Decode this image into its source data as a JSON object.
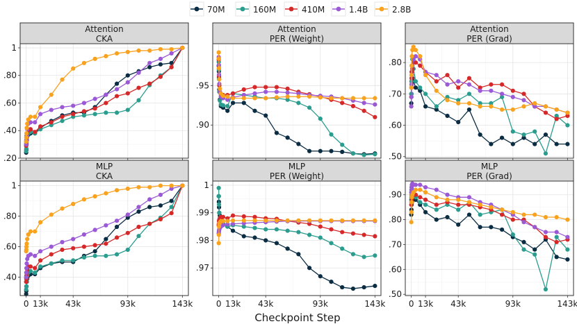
{
  "chart_data": {
    "type": "line",
    "xlabel": "Checkpoint Step",
    "x_ticks": [
      0,
      13000,
      43000,
      93000,
      143000
    ],
    "x_tick_labels": [
      "0",
      "13k",
      "43k",
      "93k",
      "143k"
    ],
    "x": [
      0,
      128,
      256,
      512,
      1000,
      2000,
      4000,
      8000,
      13000,
      23000,
      33000,
      43000,
      53000,
      63000,
      73000,
      83000,
      93000,
      103000,
      113000,
      123000,
      133000,
      143000
    ],
    "legend": {
      "position": "top",
      "entries": [
        {
          "name": "70M",
          "color": "#0b2d44"
        },
        {
          "name": "160M",
          "color": "#2a9d8f"
        },
        {
          "name": "410M",
          "color": "#d62828"
        },
        {
          "name": "1.4B",
          "color": "#9b59d6"
        },
        {
          "name": "2.8B",
          "color": "#f8a21e"
        }
      ]
    },
    "panels": [
      {
        "id": "att-cka",
        "row": 0,
        "col": 0,
        "strip": [
          "Attention",
          "CKA"
        ],
        "ylim": [
          0.2,
          1.03
        ],
        "y_ticks": [
          0.2,
          0.4,
          0.6,
          0.8,
          1.0
        ],
        "y_tick_labels": [
          ".20",
          ".40",
          ".60",
          ".80",
          "1"
        ],
        "series": [
          {
            "name": "70M",
            "values": [
              0.24,
              0.26,
              0.3,
              0.33,
              0.36,
              0.37,
              0.38,
              0.38,
              0.42,
              0.47,
              0.51,
              0.53,
              0.53,
              0.57,
              0.66,
              0.74,
              0.8,
              0.83,
              0.86,
              0.88,
              0.89,
              1.0
            ]
          },
          {
            "name": "160M",
            "values": [
              0.25,
              0.27,
              0.31,
              0.34,
              0.36,
              0.38,
              0.39,
              0.38,
              0.41,
              0.44,
              0.47,
              0.5,
              0.51,
              0.52,
              0.53,
              0.53,
              0.55,
              0.62,
              0.73,
              0.8,
              0.86,
              1.0
            ]
          },
          {
            "name": "410M",
            "values": [
              0.29,
              0.31,
              0.33,
              0.35,
              0.38,
              0.4,
              0.41,
              0.39,
              0.43,
              0.46,
              0.5,
              0.52,
              0.54,
              0.56,
              0.6,
              0.65,
              0.67,
              0.71,
              0.74,
              0.79,
              0.86,
              1.0
            ]
          },
          {
            "name": "1.4B",
            "values": [
              0.3,
              0.33,
              0.36,
              0.38,
              0.41,
              0.45,
              0.46,
              0.46,
              0.52,
              0.55,
              0.57,
              0.58,
              0.6,
              0.63,
              0.66,
              0.7,
              0.75,
              0.82,
              0.89,
              0.92,
              0.96,
              1.0
            ]
          },
          {
            "name": "2.8B",
            "values": [
              0.32,
              0.35,
              0.38,
              0.42,
              0.45,
              0.48,
              0.5,
              0.5,
              0.57,
              0.66,
              0.77,
              0.85,
              0.89,
              0.92,
              0.94,
              0.96,
              0.97,
              0.98,
              0.98,
              0.99,
              0.99,
              1.0
            ]
          }
        ]
      },
      {
        "id": "att-per-w",
        "row": 0,
        "col": 1,
        "strip": [
          "Attention",
          "PER (Weight)"
        ],
        "ylim": [
          0.858,
          1.003
        ],
        "y_ticks": [
          0.9,
          0.95
        ],
        "y_tick_labels": [
          ".90",
          ".95"
        ],
        "series": [
          {
            "name": "70M",
            "values": [
              0.975,
              0.968,
              0.96,
              0.945,
              0.932,
              0.924,
              0.922,
              0.918,
              0.928,
              0.928,
              0.918,
              0.912,
              0.89,
              0.884,
              0.876,
              0.867,
              0.867,
              0.867,
              0.866,
              0.864,
              0.863,
              0.864
            ]
          },
          {
            "name": "160M",
            "values": [
              0.98,
              0.97,
              0.958,
              0.942,
              0.931,
              0.926,
              0.925,
              0.924,
              0.94,
              0.938,
              0.936,
              0.934,
              0.934,
              0.932,
              0.928,
              0.922,
              0.908,
              0.888,
              0.875,
              0.864,
              0.862,
              0.863
            ]
          },
          {
            "name": "410M",
            "values": [
              0.983,
              0.972,
              0.962,
              0.95,
              0.942,
              0.939,
              0.938,
              0.938,
              0.94,
              0.945,
              0.948,
              0.948,
              0.948,
              0.946,
              0.942,
              0.939,
              0.936,
              0.932,
              0.928,
              0.924,
              0.918,
              0.91
            ]
          },
          {
            "name": "1.4B",
            "values": [
              0.986,
              0.976,
              0.964,
              0.952,
              0.942,
              0.936,
              0.934,
              0.932,
              0.935,
              0.938,
              0.94,
              0.942,
              0.942,
              0.941,
              0.94,
              0.938,
              0.937,
              0.936,
              0.934,
              0.931,
              0.928,
              0.926
            ]
          },
          {
            "name": "2.8B",
            "values": [
              0.992,
              0.984,
              0.972,
              0.958,
              0.946,
              0.94,
              0.937,
              0.936,
              0.934,
              0.934,
              0.934,
              0.934,
              0.935,
              0.936,
              0.936,
              0.936,
              0.935,
              0.934,
              0.934,
              0.934,
              0.934,
              0.934
            ]
          }
        ]
      },
      {
        "id": "att-per-g",
        "row": 0,
        "col": 2,
        "strip": [
          "Attention",
          "PER (Grad)"
        ],
        "ylim": [
          0.495,
          0.86
        ],
        "y_ticks": [
          0.5,
          0.6,
          0.7,
          0.8
        ],
        "y_tick_labels": [
          ".50",
          ".60",
          ".70",
          ".80"
        ],
        "series": [
          {
            "name": "70M",
            "values": [
              0.67,
              0.7,
              0.73,
              0.74,
              0.75,
              0.74,
              0.72,
              0.71,
              0.66,
              0.65,
              0.63,
              0.61,
              0.65,
              0.57,
              0.54,
              0.56,
              0.54,
              0.56,
              0.54,
              0.57,
              0.54,
              0.54
            ]
          },
          {
            "name": "160M",
            "values": [
              0.7,
              0.74,
              0.77,
              0.79,
              0.81,
              0.78,
              0.74,
              0.72,
              0.7,
              0.66,
              0.69,
              0.68,
              0.7,
              0.67,
              0.67,
              0.69,
              0.58,
              0.57,
              0.58,
              0.51,
              0.63,
              0.6
            ]
          },
          {
            "name": "410M",
            "values": [
              0.69,
              0.72,
              0.75,
              0.77,
              0.78,
              0.8,
              0.8,
              0.79,
              0.77,
              0.74,
              0.76,
              0.72,
              0.75,
              0.72,
              0.73,
              0.73,
              0.71,
              0.7,
              0.66,
              0.64,
              0.62,
              0.63
            ]
          },
          {
            "name": "1.4B",
            "values": [
              0.66,
              0.69,
              0.73,
              0.76,
              0.79,
              0.81,
              0.82,
              0.81,
              0.77,
              0.76,
              0.73,
              0.74,
              0.73,
              0.71,
              0.71,
              0.7,
              0.69,
              0.68,
              0.66,
              0.66,
              0.65,
              0.64
            ]
          },
          {
            "name": "2.8B",
            "values": [
              0.72,
              0.76,
              0.79,
              0.82,
              0.84,
              0.85,
              0.84,
              0.82,
              0.76,
              0.71,
              0.68,
              0.67,
              0.67,
              0.66,
              0.66,
              0.65,
              0.65,
              0.66,
              0.67,
              0.66,
              0.65,
              0.64
            ]
          }
        ]
      },
      {
        "id": "mlp-cka",
        "row": 1,
        "col": 0,
        "strip": [
          "MLP",
          "CKA"
        ],
        "ylim": [
          0.28,
          1.03
        ],
        "y_ticks": [
          0.4,
          0.6,
          0.8,
          1.0
        ],
        "y_tick_labels": [
          ".40",
          ".60",
          ".80",
          "1"
        ],
        "series": [
          {
            "name": "70M",
            "values": [
              0.29,
              0.31,
              0.34,
              0.37,
              0.39,
              0.41,
              0.42,
              0.42,
              0.46,
              0.49,
              0.5,
              0.5,
              0.54,
              0.57,
              0.65,
              0.73,
              0.79,
              0.83,
              0.86,
              0.87,
              0.9,
              1.0
            ]
          },
          {
            "name": "160M",
            "values": [
              0.32,
              0.34,
              0.37,
              0.39,
              0.41,
              0.43,
              0.44,
              0.43,
              0.47,
              0.49,
              0.51,
              0.51,
              0.53,
              0.54,
              0.54,
              0.55,
              0.58,
              0.67,
              0.75,
              0.79,
              0.86,
              1.0
            ]
          },
          {
            "name": "410M",
            "values": [
              0.37,
              0.39,
              0.41,
              0.43,
              0.45,
              0.47,
              0.47,
              0.46,
              0.51,
              0.55,
              0.58,
              0.59,
              0.6,
              0.61,
              0.62,
              0.66,
              0.69,
              0.73,
              0.75,
              0.78,
              0.82,
              1.0
            ]
          },
          {
            "name": "1.4B",
            "values": [
              0.4,
              0.43,
              0.46,
              0.49,
              0.52,
              0.54,
              0.55,
              0.54,
              0.57,
              0.6,
              0.63,
              0.65,
              0.68,
              0.71,
              0.74,
              0.77,
              0.81,
              0.86,
              0.91,
              0.94,
              0.98,
              1.0
            ]
          },
          {
            "name": "2.8B",
            "values": [
              0.57,
              0.58,
              0.6,
              0.62,
              0.65,
              0.68,
              0.7,
              0.7,
              0.76,
              0.81,
              0.85,
              0.88,
              0.91,
              0.93,
              0.95,
              0.97,
              0.98,
              0.99,
              0.99,
              1.0,
              1.0,
              1.0
            ]
          }
        ]
      },
      {
        "id": "mlp-per-w",
        "row": 1,
        "col": 1,
        "strip": [
          "MLP",
          "PER (Weight)"
        ],
        "ylim": [
          0.96,
          1.0015
        ],
        "y_ticks": [
          0.97,
          0.98,
          0.99,
          1.0
        ],
        "y_tick_labels": [
          ".97",
          ".98",
          ".99",
          "1"
        ],
        "series": [
          {
            "name": "70M",
            "values": [
              0.996,
              0.994,
              0.992,
              0.99,
              0.989,
              0.988,
              0.986,
              0.985,
              0.9835,
              0.9815,
              0.981,
              0.98,
              0.979,
              0.977,
              0.975,
              0.97,
              0.967,
              0.965,
              0.963,
              0.9625,
              0.963,
              0.9635
            ]
          },
          {
            "name": "160M",
            "values": [
              0.999,
              0.996,
              0.993,
              0.99,
              0.988,
              0.987,
              0.986,
              0.985,
              0.9855,
              0.985,
              0.9845,
              0.984,
              0.984,
              0.9835,
              0.983,
              0.982,
              0.981,
              0.979,
              0.977,
              0.975,
              0.974,
              0.9745
            ]
          },
          {
            "name": "410M",
            "values": [
              0.9855,
              0.986,
              0.987,
              0.9875,
              0.988,
              0.9885,
              0.9885,
              0.988,
              0.989,
              0.9887,
              0.9885,
              0.988,
              0.9878,
              0.987,
              0.9865,
              0.986,
              0.985,
              0.984,
              0.983,
              0.9825,
              0.982,
              0.9815
            ]
          },
          {
            "name": "1.4B",
            "values": [
              0.9825,
              0.983,
              0.9835,
              0.984,
              0.9845,
              0.985,
              0.9855,
              0.9858,
              0.986,
              0.9862,
              0.9864,
              0.9866,
              0.9868,
              0.987,
              0.987,
              0.987,
              0.987,
              0.987,
              0.987,
              0.987,
              0.987,
              0.987
            ]
          },
          {
            "name": "2.8B",
            "values": [
              0.979,
              0.982,
              0.985,
              0.986,
              0.9865,
              0.987,
              0.987,
              0.987,
              0.9872,
              0.9872,
              0.9872,
              0.9872,
              0.9872,
              0.9872,
              0.9872,
              0.9872,
              0.9872,
              0.9872,
              0.9872,
              0.9872,
              0.9872,
              0.9872
            ]
          }
        ]
      },
      {
        "id": "mlp-per-g",
        "row": 1,
        "col": 2,
        "strip": [
          "MLP",
          "PER (Grad)"
        ],
        "ylim": [
          0.495,
          0.955
        ],
        "y_ticks": [
          0.5,
          0.6,
          0.7,
          0.8,
          0.9
        ],
        "y_tick_labels": [
          ".50",
          ".60",
          ".70",
          ".80",
          ".90"
        ],
        "series": [
          {
            "name": "70M",
            "values": [
              0.82,
              0.84,
              0.86,
              0.87,
              0.88,
              0.89,
              0.88,
              0.86,
              0.83,
              0.8,
              0.81,
              0.78,
              0.82,
              0.77,
              0.77,
              0.76,
              0.73,
              0.71,
              0.68,
              0.72,
              0.65,
              0.64
            ]
          },
          {
            "name": "160M",
            "values": [
              0.88,
              0.89,
              0.9,
              0.91,
              0.92,
              0.91,
              0.89,
              0.87,
              0.86,
              0.84,
              0.86,
              0.84,
              0.87,
              0.82,
              0.83,
              0.84,
              0.74,
              0.68,
              0.66,
              0.52,
              0.73,
              0.68
            ]
          },
          {
            "name": "410M",
            "values": [
              0.86,
              0.87,
              0.88,
              0.89,
              0.9,
              0.9,
              0.9,
              0.89,
              0.88,
              0.86,
              0.87,
              0.86,
              0.86,
              0.85,
              0.84,
              0.82,
              0.8,
              0.8,
              0.77,
              0.73,
              0.71,
              0.72
            ]
          },
          {
            "name": "1.4B",
            "values": [
              0.91,
              0.92,
              0.93,
              0.94,
              0.945,
              0.94,
              0.94,
              0.94,
              0.93,
              0.92,
              0.9,
              0.89,
              0.89,
              0.87,
              0.86,
              0.84,
              0.82,
              0.79,
              0.77,
              0.75,
              0.75,
              0.73
            ]
          },
          {
            "name": "2.8B",
            "values": [
              0.79,
              0.83,
              0.87,
              0.89,
              0.9,
              0.91,
              0.92,
              0.92,
              0.91,
              0.89,
              0.88,
              0.88,
              0.87,
              0.86,
              0.85,
              0.84,
              0.83,
              0.82,
              0.82,
              0.81,
              0.81,
              0.8
            ]
          }
        ]
      }
    ]
  }
}
